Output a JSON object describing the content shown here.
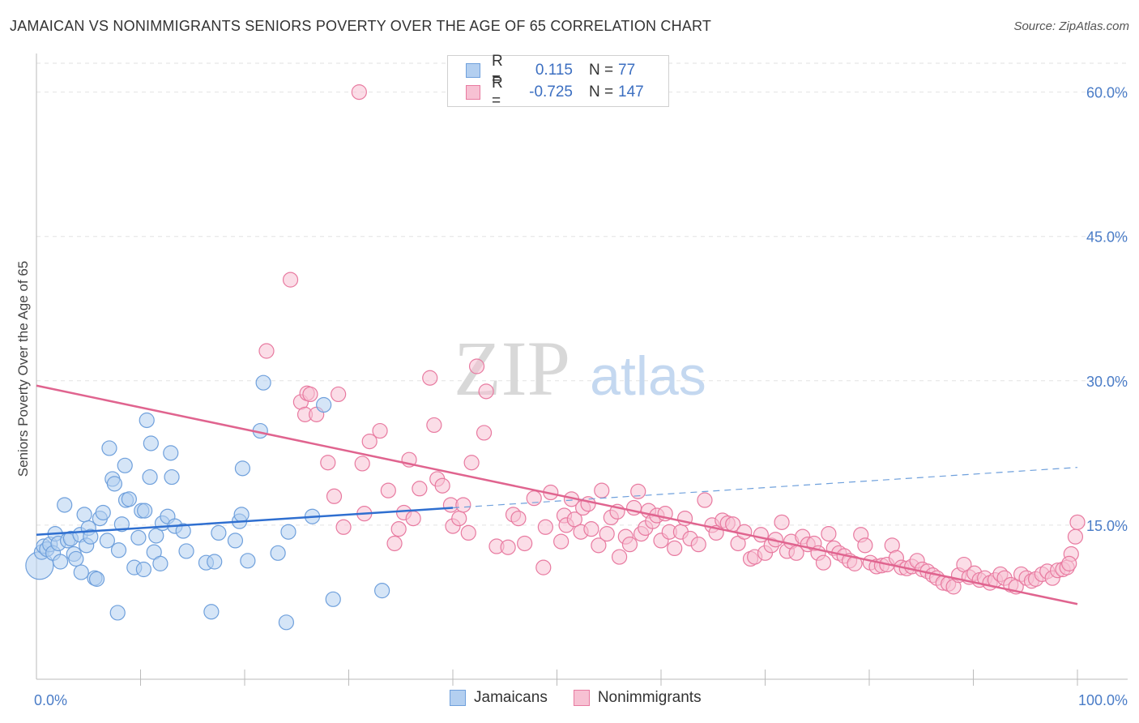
{
  "title": "JAMAICAN VS NONIMMIGRANTS SENIORS POVERTY OVER THE AGE OF 65 CORRELATION CHART",
  "source": "Source: ZipAtlas.com",
  "watermark": {
    "zip": "ZIP",
    "atlas": "atlas"
  },
  "legend": {
    "rows": [
      {
        "r_label": "R =",
        "r_value": "0.115",
        "n_label": "N =",
        "n_value": "77",
        "color": "#6fa0dc",
        "fill": "#b3cff0"
      },
      {
        "r_label": "R =",
        "r_value": "-0.725",
        "n_label": "N =",
        "n_value": "147",
        "color": "#e87aa0",
        "fill": "#f7c1d3"
      }
    ],
    "bottom": [
      "Jamaicans",
      "Nonimmigrants"
    ]
  },
  "chart_data": {
    "type": "scatter",
    "ylabel": "Seniors Poverty Over the Age of 65",
    "xlim": [
      0,
      100
    ],
    "ylim": [
      0,
      63
    ],
    "x_tick_labels": [
      {
        "value": 0,
        "label": "0.0%"
      },
      {
        "value": 100,
        "label": "100.0%"
      }
    ],
    "y_ticks": [
      {
        "value": 15,
        "label": "15.0%"
      },
      {
        "value": 30,
        "label": "30.0%"
      },
      {
        "value": 45,
        "label": "45.0%"
      },
      {
        "value": 60,
        "label": "60.0%"
      }
    ],
    "grid": true,
    "series": [
      {
        "name": "Jamaicans",
        "color": "#6fa0dc",
        "fill": "#b3cff0",
        "trend": {
          "x0": 0,
          "y0": 14.0,
          "x1": 40,
          "y1": 16.8,
          "dash_x1": 100,
          "dash_y1": 21.0
        },
        "points": [
          [
            0.3,
            10.8,
            3
          ],
          [
            0.5,
            12.2,
            1
          ],
          [
            0.7,
            12.8,
            1
          ],
          [
            1.0,
            12.5,
            1
          ],
          [
            1.3,
            13.0,
            1
          ],
          [
            1.6,
            12.1,
            1
          ],
          [
            1.8,
            14.1,
            1
          ],
          [
            2.1,
            13.1,
            1
          ],
          [
            2.3,
            11.2,
            1
          ],
          [
            2.7,
            17.1,
            1
          ],
          [
            3.0,
            13.4,
            1
          ],
          [
            3.3,
            13.6,
            1
          ],
          [
            3.6,
            12.0,
            1
          ],
          [
            3.8,
            11.5,
            1
          ],
          [
            4.2,
            14.0,
            1
          ],
          [
            4.3,
            10.1,
            1
          ],
          [
            4.6,
            16.1,
            1
          ],
          [
            4.8,
            12.9,
            1
          ],
          [
            5.0,
            14.7,
            1
          ],
          [
            5.2,
            13.8,
            1
          ],
          [
            5.6,
            9.5,
            1
          ],
          [
            5.8,
            9.4,
            1
          ],
          [
            6.1,
            15.7,
            1
          ],
          [
            6.4,
            16.3,
            1
          ],
          [
            6.8,
            13.4,
            1
          ],
          [
            7.0,
            23.0,
            1
          ],
          [
            7.3,
            19.8,
            1
          ],
          [
            7.5,
            19.3,
            1
          ],
          [
            7.8,
            5.9,
            1
          ],
          [
            7.9,
            12.4,
            1
          ],
          [
            8.2,
            15.1,
            1
          ],
          [
            8.5,
            21.2,
            1
          ],
          [
            8.6,
            17.6,
            1
          ],
          [
            8.9,
            17.7,
            1
          ],
          [
            9.4,
            10.6,
            1
          ],
          [
            9.8,
            13.7,
            1
          ],
          [
            10.1,
            16.5,
            1
          ],
          [
            10.3,
            10.4,
            1
          ],
          [
            10.4,
            16.5,
            1
          ],
          [
            10.6,
            25.9,
            1
          ],
          [
            10.9,
            20.0,
            1
          ],
          [
            11.0,
            23.5,
            1
          ],
          [
            11.3,
            12.2,
            1
          ],
          [
            11.5,
            13.9,
            1
          ],
          [
            11.9,
            11.0,
            1
          ],
          [
            12.1,
            15.2,
            1
          ],
          [
            12.6,
            15.9,
            1
          ],
          [
            12.9,
            22.5,
            1
          ],
          [
            13.0,
            20.0,
            1
          ],
          [
            13.3,
            14.9,
            1
          ],
          [
            14.1,
            14.4,
            1
          ],
          [
            14.4,
            12.3,
            1
          ],
          [
            16.3,
            11.1,
            1
          ],
          [
            16.8,
            6.0,
            1
          ],
          [
            17.1,
            11.2,
            1
          ],
          [
            17.5,
            14.2,
            1
          ],
          [
            19.1,
            13.4,
            1
          ],
          [
            19.5,
            15.4,
            1
          ],
          [
            19.7,
            16.1,
            1
          ],
          [
            19.8,
            20.9,
            1
          ],
          [
            20.3,
            11.3,
            1
          ],
          [
            21.5,
            24.8,
            1
          ],
          [
            21.8,
            29.8,
            1
          ],
          [
            23.2,
            12.1,
            1
          ],
          [
            24.0,
            4.9,
            1
          ],
          [
            24.2,
            14.3,
            1
          ],
          [
            26.5,
            15.9,
            1
          ],
          [
            27.6,
            27.5,
            1
          ],
          [
            28.5,
            7.3,
            1
          ],
          [
            33.2,
            8.2,
            1
          ]
        ]
      },
      {
        "name": "Nonimmigrants",
        "color": "#e87aa0",
        "fill": "#f7c1d3",
        "trend": {
          "x0": 0,
          "y0": 29.5,
          "x1": 100,
          "y1": 6.8
        },
        "points": [
          [
            22.1,
            33.1,
            1
          ],
          [
            24.4,
            40.5,
            1
          ],
          [
            25.4,
            27.8,
            1
          ],
          [
            25.8,
            26.5,
            1
          ],
          [
            26.0,
            28.7,
            1
          ],
          [
            26.3,
            28.6,
            1
          ],
          [
            26.9,
            26.5,
            1
          ],
          [
            28.0,
            21.5,
            1
          ],
          [
            28.6,
            18.0,
            1
          ],
          [
            29.0,
            28.6,
            1
          ],
          [
            29.5,
            14.8,
            1
          ],
          [
            31.0,
            60.0,
            1
          ],
          [
            31.3,
            21.4,
            1
          ],
          [
            31.5,
            16.2,
            1
          ],
          [
            32.0,
            23.7,
            1
          ],
          [
            33.0,
            24.8,
            1
          ],
          [
            33.8,
            18.6,
            1
          ],
          [
            34.4,
            13.1,
            1
          ],
          [
            34.8,
            14.6,
            1
          ],
          [
            35.3,
            16.3,
            1
          ],
          [
            35.8,
            21.8,
            1
          ],
          [
            36.2,
            15.7,
            1
          ],
          [
            36.8,
            18.8,
            1
          ],
          [
            37.8,
            30.3,
            1
          ],
          [
            38.2,
            25.4,
            1
          ],
          [
            38.5,
            19.8,
            1
          ],
          [
            39.0,
            19.1,
            1
          ],
          [
            39.8,
            17.1,
            1
          ],
          [
            40.0,
            14.9,
            1
          ],
          [
            40.6,
            15.7,
            1
          ],
          [
            41.0,
            17.1,
            1
          ],
          [
            41.5,
            14.2,
            1
          ],
          [
            41.8,
            21.5,
            1
          ],
          [
            42.3,
            31.5,
            1
          ],
          [
            43.0,
            24.6,
            1
          ],
          [
            43.2,
            28.9,
            1
          ],
          [
            44.2,
            12.8,
            1
          ],
          [
            45.3,
            12.7,
            1
          ],
          [
            45.8,
            16.1,
            1
          ],
          [
            46.3,
            15.7,
            1
          ],
          [
            46.9,
            13.1,
            1
          ],
          [
            47.8,
            17.8,
            1
          ],
          [
            48.7,
            10.6,
            1
          ],
          [
            48.9,
            14.8,
            1
          ],
          [
            49.4,
            18.4,
            1
          ],
          [
            50.4,
            13.3,
            1
          ],
          [
            50.7,
            16.0,
            1
          ],
          [
            50.9,
            15.0,
            1
          ],
          [
            51.4,
            17.7,
            1
          ],
          [
            51.7,
            15.6,
            1
          ],
          [
            52.3,
            14.3,
            1
          ],
          [
            52.5,
            16.8,
            1
          ],
          [
            53.0,
            17.2,
            1
          ],
          [
            53.3,
            14.6,
            1
          ],
          [
            54.0,
            12.9,
            1
          ],
          [
            54.3,
            18.6,
            1
          ],
          [
            54.8,
            14.1,
            1
          ],
          [
            55.2,
            15.8,
            1
          ],
          [
            55.8,
            16.4,
            1
          ],
          [
            56.0,
            11.7,
            1
          ],
          [
            56.6,
            13.8,
            1
          ],
          [
            57.0,
            13.0,
            1
          ],
          [
            57.4,
            16.8,
            1
          ],
          [
            57.8,
            18.5,
            1
          ],
          [
            58.1,
            14.1,
            1
          ],
          [
            58.5,
            14.7,
            1
          ],
          [
            58.8,
            16.5,
            1
          ],
          [
            59.2,
            15.4,
            1
          ],
          [
            59.6,
            16.0,
            1
          ],
          [
            60.0,
            13.4,
            1
          ],
          [
            60.4,
            16.2,
            1
          ],
          [
            60.8,
            14.3,
            1
          ],
          [
            61.3,
            12.6,
            1
          ],
          [
            61.9,
            14.3,
            1
          ],
          [
            62.3,
            15.7,
            1
          ],
          [
            62.8,
            13.6,
            1
          ],
          [
            63.6,
            13.0,
            1
          ],
          [
            64.2,
            17.6,
            1
          ],
          [
            64.9,
            15.0,
            1
          ],
          [
            65.3,
            14.2,
            1
          ],
          [
            65.9,
            15.5,
            1
          ],
          [
            66.4,
            15.2,
            1
          ],
          [
            66.9,
            15.1,
            1
          ],
          [
            67.4,
            13.1,
            1
          ],
          [
            68.0,
            14.3,
            1
          ],
          [
            68.6,
            11.5,
            1
          ],
          [
            69.0,
            11.7,
            1
          ],
          [
            69.6,
            14.0,
            1
          ],
          [
            70.0,
            12.1,
            1
          ],
          [
            70.6,
            12.9,
            1
          ],
          [
            71.0,
            13.5,
            1
          ],
          [
            71.6,
            15.3,
            1
          ],
          [
            72.1,
            12.3,
            1
          ],
          [
            72.5,
            13.3,
            1
          ],
          [
            73.0,
            12.1,
            1
          ],
          [
            73.6,
            13.8,
            1
          ],
          [
            74.1,
            13.0,
            1
          ],
          [
            74.7,
            13.1,
            1
          ],
          [
            75.1,
            12.1,
            1
          ],
          [
            75.6,
            11.1,
            1
          ],
          [
            76.1,
            14.1,
            1
          ],
          [
            76.6,
            12.6,
            1
          ],
          [
            77.1,
            12.1,
            1
          ],
          [
            77.6,
            11.8,
            1
          ],
          [
            78.1,
            11.3,
            1
          ],
          [
            78.6,
            11.0,
            1
          ],
          [
            79.2,
            14.0,
            1
          ],
          [
            79.6,
            12.9,
            1
          ],
          [
            80.1,
            11.1,
            1
          ],
          [
            80.7,
            10.7,
            1
          ],
          [
            81.2,
            10.8,
            1
          ],
          [
            81.7,
            10.9,
            1
          ],
          [
            82.2,
            12.9,
            1
          ],
          [
            82.6,
            11.6,
            1
          ],
          [
            83.1,
            10.6,
            1
          ],
          [
            83.6,
            10.5,
            1
          ],
          [
            84.1,
            10.7,
            1
          ],
          [
            84.6,
            11.3,
            1
          ],
          [
            85.1,
            10.4,
            1
          ],
          [
            85.6,
            10.2,
            1
          ],
          [
            86.1,
            9.8,
            1
          ],
          [
            86.5,
            9.5,
            1
          ],
          [
            87.1,
            9.0,
            1
          ],
          [
            87.6,
            8.9,
            1
          ],
          [
            88.1,
            8.6,
            1
          ],
          [
            88.6,
            9.8,
            1
          ],
          [
            89.1,
            10.9,
            1
          ],
          [
            89.6,
            9.6,
            1
          ],
          [
            90.1,
            10.0,
            1
          ],
          [
            90.6,
            9.3,
            1
          ],
          [
            91.1,
            9.5,
            1
          ],
          [
            91.6,
            9.0,
            1
          ],
          [
            92.1,
            9.3,
            1
          ],
          [
            92.6,
            9.9,
            1
          ],
          [
            93.0,
            9.5,
            1
          ],
          [
            93.6,
            8.8,
            1
          ],
          [
            94.1,
            8.6,
            1
          ],
          [
            94.6,
            9.9,
            1
          ],
          [
            95.1,
            9.5,
            1
          ],
          [
            95.6,
            9.2,
            1
          ],
          [
            96.0,
            9.4,
            1
          ],
          [
            96.6,
            9.9,
            1
          ],
          [
            97.1,
            10.2,
            1
          ],
          [
            97.6,
            9.5,
            1
          ],
          [
            98.1,
            10.3,
            1
          ],
          [
            98.6,
            10.4,
            1
          ],
          [
            99.0,
            10.6,
            1
          ],
          [
            99.4,
            12.0,
            1
          ],
          [
            99.8,
            13.8,
            1
          ],
          [
            100.0,
            15.3,
            1
          ],
          [
            99.2,
            11.0,
            1
          ]
        ]
      }
    ]
  }
}
